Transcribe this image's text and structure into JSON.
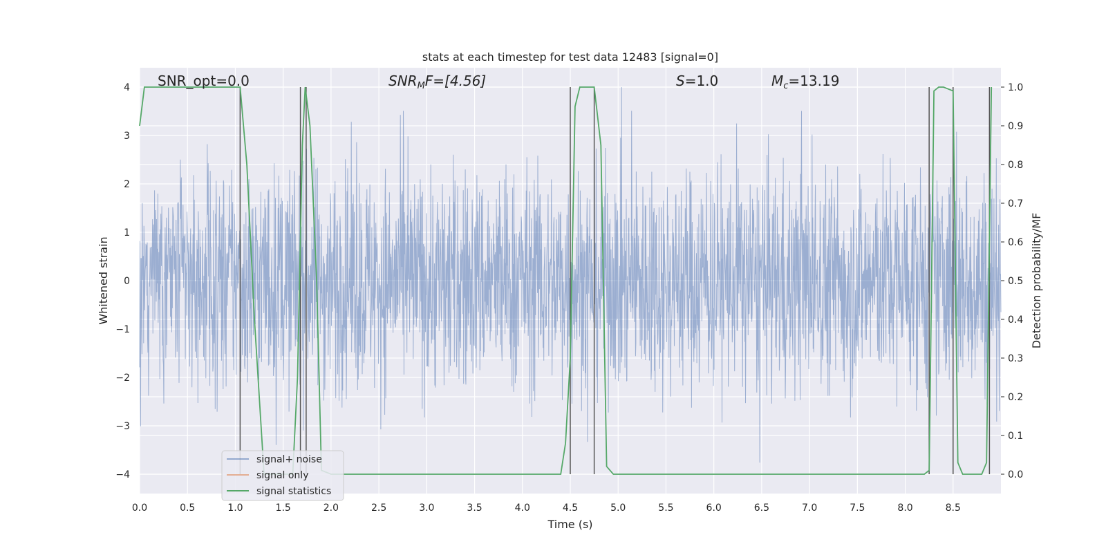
{
  "chart_data": {
    "type": "line",
    "title": "stats at each timestep for test data 12483 [signal=0]",
    "xlabel": "Time (s)",
    "ylabel": "Whitened strain",
    "y2label": "Detection probability/MF",
    "xlim": [
      0.0,
      9.0
    ],
    "ylim": [
      -4.4,
      4.4
    ],
    "y2lim": [
      -0.05,
      1.05
    ],
    "xticks": [
      "0.0",
      "0.5",
      "1.0",
      "1.5",
      "2.0",
      "2.5",
      "3.0",
      "3.5",
      "4.0",
      "4.5",
      "5.0",
      "5.5",
      "6.0",
      "6.5",
      "7.0",
      "7.5",
      "8.0",
      "8.5"
    ],
    "yticks": [
      "4",
      "3",
      "2",
      "1",
      "0",
      "−1",
      "−2",
      "−3",
      "−4"
    ],
    "y2ticks": [
      "1.0",
      "0.9",
      "0.8",
      "0.7",
      "0.6",
      "0.5",
      "0.4",
      "0.3",
      "0.2",
      "0.1",
      "0.0"
    ],
    "grid": true,
    "legend_position": "lower-left",
    "annotations": {
      "snr_opt": "SNR_opt=0.0",
      "snr_mf_sym": "SNR",
      "snr_mf_sub": "M",
      "snr_mf_rest": "F=[4.56]",
      "s_sym": "S",
      "s_rest": "=1.0",
      "mc_sym": "M",
      "mc_sub": "c",
      "mc_rest": "=13.19"
    },
    "series": [
      {
        "name": "signal+ noise",
        "color": "#4c72b0",
        "axis": "left",
        "description_level": "whitened noise strain fluctuating roughly between -3.8 and 4.0",
        "envelope_max": 4.0,
        "envelope_min": -3.8
      },
      {
        "name": "signal only",
        "color": "#dd8452",
        "axis": "left",
        "values": []
      },
      {
        "name": "signal statistics",
        "color": "#55a868",
        "axis": "right",
        "x": [
          0.0,
          0.05,
          0.1,
          0.2,
          0.5,
          0.8,
          1.0,
          1.05,
          1.12,
          1.2,
          1.3,
          1.5,
          1.6,
          1.65,
          1.7,
          1.73,
          1.78,
          1.85,
          1.9,
          2.0,
          2.5,
          3.0,
          3.5,
          4.0,
          4.4,
          4.45,
          4.5,
          4.55,
          4.6,
          4.75,
          4.82,
          4.88,
          4.95,
          5.5,
          6.0,
          6.5,
          7.0,
          7.5,
          8.0,
          8.2,
          8.25,
          8.3,
          8.35,
          8.4,
          8.5,
          8.55,
          8.6,
          8.65,
          8.8,
          8.85,
          8.9
        ],
        "y": [
          0.9,
          1.0,
          1.0,
          1.0,
          1.0,
          1.0,
          1.0,
          1.0,
          0.8,
          0.4,
          0.0,
          0.0,
          0.0,
          0.25,
          0.85,
          1.0,
          0.9,
          0.5,
          0.01,
          0.0,
          0.0,
          0.0,
          0.0,
          0.0,
          0.0,
          0.08,
          0.3,
          0.95,
          1.0,
          1.0,
          0.85,
          0.02,
          0.0,
          0.0,
          0.0,
          0.0,
          0.0,
          0.0,
          0.0,
          0.0,
          0.01,
          0.99,
          1.0,
          1.0,
          0.99,
          0.03,
          0.0,
          0.0,
          0.0,
          0.03,
          1.0
        ]
      }
    ],
    "vertical_lines_x": [
      1.05,
      1.68,
      1.74,
      4.5,
      4.75,
      8.25,
      8.5,
      8.88
    ]
  }
}
